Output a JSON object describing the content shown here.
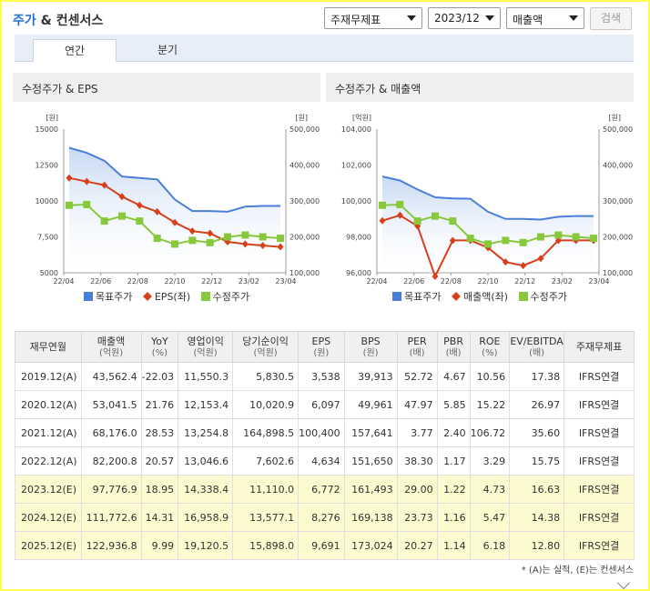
{
  "header": {
    "title_part1": "주가",
    "title_part2": "& 컨센서스",
    "select_statement": "주재무제표",
    "select_period": "2023/12",
    "select_metric": "매출액",
    "search_button": "검색"
  },
  "tabs": [
    {
      "label": "연간",
      "active": true
    },
    {
      "label": "분기",
      "active": false
    }
  ],
  "colors": {
    "target_price": "#4a7fd8",
    "eps": "#d6401a",
    "adj_price": "#88c83c",
    "sales": "#d6401a"
  },
  "chart_data": [
    {
      "type": "line",
      "title": "수정주가 & EPS",
      "left_unit": "[원]",
      "right_unit": "[원]",
      "left_ticks": [
        "15000",
        "12500",
        "10000",
        "7,500",
        "5000"
      ],
      "left_range": [
        5000,
        15000
      ],
      "right_ticks": [
        "500,000",
        "400,000",
        "300,000",
        "200,000",
        "100,000"
      ],
      "right_range": [
        100000,
        500000
      ],
      "x_labels": [
        "22/04",
        "22/06",
        "22/08",
        "22/10",
        "22/12",
        "23/02",
        "23/04"
      ],
      "series": [
        {
          "name": "목표주가",
          "axis": "left",
          "style": "area",
          "values": [
            13700,
            13350,
            12800,
            11700,
            11600,
            11500,
            10100,
            9300,
            9300,
            9250,
            9600,
            9650,
            9650
          ]
        },
        {
          "name": "EPS(좌)",
          "axis": "left",
          "style": "diamond",
          "values": [
            11600,
            11350,
            11100,
            10300,
            9700,
            9250,
            8500,
            7900,
            7750,
            7150,
            7000,
            6900,
            6800
          ]
        },
        {
          "name": "수정주가",
          "axis": "right",
          "style": "square",
          "values": [
            288000,
            290000,
            244000,
            258000,
            244000,
            196000,
            180000,
            190000,
            184000,
            200000,
            205000,
            200000,
            196000
          ]
        }
      ]
    },
    {
      "type": "line",
      "title": "수정주가 & 매출액",
      "left_unit": "[억원]",
      "right_unit": "[원]",
      "left_ticks": [
        "104,000",
        "102,000",
        "100,000",
        "98,000",
        "96,000"
      ],
      "left_range": [
        96000,
        104000
      ],
      "right_ticks": [
        "500,000",
        "400,000",
        "300,000",
        "200,000",
        "100,000"
      ],
      "right_range": [
        100000,
        500000
      ],
      "x_labels": [
        "22/04",
        "22/06",
        "22/08",
        "22/10",
        "22/12",
        "23/02",
        "23/04"
      ],
      "series": [
        {
          "name": "목표주가",
          "axis": "right",
          "style": "area",
          "values": [
            368000,
            357000,
            332000,
            310000,
            307000,
            306000,
            270000,
            250000,
            250000,
            248000,
            256000,
            258000,
            258000
          ]
        },
        {
          "name": "매출액(좌)",
          "axis": "left",
          "style": "diamond",
          "values": [
            98900,
            99200,
            98600,
            95800,
            97800,
            97800,
            97400,
            96600,
            96400,
            96800,
            97800,
            97800,
            97800
          ]
        },
        {
          "name": "수정주가",
          "axis": "right",
          "style": "square",
          "values": [
            288000,
            290000,
            244000,
            258000,
            244000,
            196000,
            180000,
            190000,
            184000,
            200000,
            205000,
            200000,
            196000
          ]
        }
      ]
    }
  ],
  "table": {
    "headers": [
      {
        "label": "재무연월",
        "unit": ""
      },
      {
        "label": "매출액",
        "unit": "(억원)"
      },
      {
        "label": "YoY",
        "unit": "(%)"
      },
      {
        "label": "영업이익",
        "unit": "(억원)"
      },
      {
        "label": "당기순이익",
        "unit": "(억원)"
      },
      {
        "label": "EPS",
        "unit": "(원)"
      },
      {
        "label": "BPS",
        "unit": "(원)"
      },
      {
        "label": "PER",
        "unit": "(배)"
      },
      {
        "label": "PBR",
        "unit": "(배)"
      },
      {
        "label": "ROE",
        "unit": "(%)"
      },
      {
        "label": "EV/EBITDA",
        "unit": "(배)"
      },
      {
        "label": "주재무제표",
        "unit": ""
      }
    ],
    "rows": [
      {
        "estimate": false,
        "cells": [
          "2019.12(A)",
          "43,562.4",
          "-22.03",
          "11,550.3",
          "5,830.5",
          "3,538",
          "39,913",
          "52.72",
          "4.67",
          "10.56",
          "17.38",
          "IFRS연결"
        ]
      },
      {
        "estimate": false,
        "cells": [
          "2020.12(A)",
          "53,041.5",
          "21.76",
          "12,153.4",
          "10,020.9",
          "6,097",
          "49,961",
          "47.97",
          "5.85",
          "15.22",
          "26.97",
          "IFRS연결"
        ]
      },
      {
        "estimate": false,
        "cells": [
          "2021.12(A)",
          "68,176.0",
          "28.53",
          "13,254.8",
          "164,898.5",
          "100,400",
          "157,641",
          "3.77",
          "2.40",
          "106.72",
          "35.60",
          "IFRS연결"
        ]
      },
      {
        "estimate": false,
        "cells": [
          "2022.12(A)",
          "82,200.8",
          "20.57",
          "13,046.6",
          "7,602.6",
          "4,634",
          "151,650",
          "38.30",
          "1.17",
          "3.29",
          "15.75",
          "IFRS연결"
        ]
      },
      {
        "estimate": true,
        "cells": [
          "2023.12(E)",
          "97,776.9",
          "18.95",
          "14,338.4",
          "11,110.0",
          "6,772",
          "161,493",
          "29.00",
          "1.22",
          "4.73",
          "16.63",
          "IFRS연결"
        ]
      },
      {
        "estimate": true,
        "cells": [
          "2024.12(E)",
          "111,772.6",
          "14.31",
          "16,958.9",
          "13,577.1",
          "8,276",
          "169,138",
          "23.73",
          "1.16",
          "5.47",
          "14.38",
          "IFRS연결"
        ]
      },
      {
        "estimate": true,
        "cells": [
          "2025.12(E)",
          "122,936.8",
          "9.99",
          "19,120.5",
          "15,898.0",
          "9,691",
          "173,024",
          "20.27",
          "1.14",
          "6.18",
          "12.80",
          "IFRS연결"
        ]
      }
    ]
  },
  "footnote": "* (A)는 실적, (E)는 컨센서스"
}
